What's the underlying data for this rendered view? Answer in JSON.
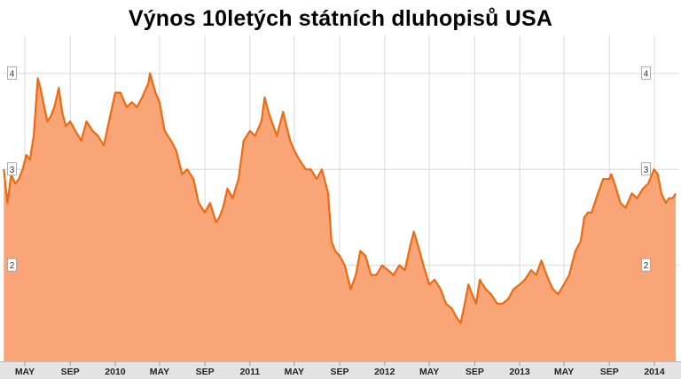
{
  "colors": {
    "line": "#ee6a10",
    "area": "#f9a577",
    "grid": "#d9d9d9",
    "axis_band": "#e3e3e3",
    "label_box_border": "#999999"
  },
  "chart_data": {
    "type": "area",
    "title": "Výnos 10letých státních dluhopisů USA",
    "xlabel": "",
    "ylabel": "",
    "ylim": [
      1.0,
      4.35
    ],
    "yticks": [
      2,
      3,
      4
    ],
    "grid": true,
    "x_ticks": [
      {
        "label": "MAY",
        "date": "2009-05"
      },
      {
        "label": "SEP",
        "date": "2009-09"
      },
      {
        "label": "2010",
        "date": "2010-01"
      },
      {
        "label": "MAY",
        "date": "2010-05"
      },
      {
        "label": "SEP",
        "date": "2010-09"
      },
      {
        "label": "2011",
        "date": "2011-01"
      },
      {
        "label": "MAY",
        "date": "2011-05"
      },
      {
        "label": "SEP",
        "date": "2011-09"
      },
      {
        "label": "2012",
        "date": "2012-01"
      },
      {
        "label": "MAY",
        "date": "2012-05"
      },
      {
        "label": "SEP",
        "date": "2012-09"
      },
      {
        "label": "2013",
        "date": "2013-01"
      },
      {
        "label": "MAY",
        "date": "2013-05"
      },
      {
        "label": "SEP",
        "date": "2013-09"
      },
      {
        "label": "2014",
        "date": "2014-01"
      }
    ],
    "series": [
      {
        "x": [
          "2009-03-05",
          "2009-03-15",
          "2009-03-25",
          "2009-04-05",
          "2009-04-15",
          "2009-04-25",
          "2009-05-05",
          "2009-05-15",
          "2009-05-25",
          "2009-06-05",
          "2009-06-12",
          "2009-06-20",
          "2009-07-01",
          "2009-07-10",
          "2009-07-20",
          "2009-08-01",
          "2009-08-10",
          "2009-08-20",
          "2009-09-01",
          "2009-09-15",
          "2009-10-01",
          "2009-10-15",
          "2009-11-01",
          "2009-11-15",
          "2009-12-01",
          "2009-12-15",
          "2010-01-01",
          "2010-01-15",
          "2010-02-01",
          "2010-02-15",
          "2010-03-01",
          "2010-03-15",
          "2010-04-01",
          "2010-04-05",
          "2010-04-20",
          "2010-05-01",
          "2010-05-15",
          "2010-06-01",
          "2010-06-15",
          "2010-07-01",
          "2010-07-15",
          "2010-08-01",
          "2010-08-15",
          "2010-09-01",
          "2010-09-15",
          "2010-10-01",
          "2010-10-10",
          "2010-10-20",
          "2010-11-01",
          "2010-11-15",
          "2010-12-01",
          "2010-12-15",
          "2011-01-01",
          "2011-01-15",
          "2011-02-01",
          "2011-02-10",
          "2011-02-20",
          "2011-03-01",
          "2011-03-15",
          "2011-04-01",
          "2011-04-10",
          "2011-04-20",
          "2011-05-01",
          "2011-05-15",
          "2011-06-01",
          "2011-06-15",
          "2011-07-01",
          "2011-07-15",
          "2011-07-25",
          "2011-08-01",
          "2011-08-10",
          "2011-08-20",
          "2011-09-01",
          "2011-09-15",
          "2011-10-01",
          "2011-10-15",
          "2011-10-27",
          "2011-11-10",
          "2011-11-25",
          "2011-12-10",
          "2011-12-25",
          "2012-01-10",
          "2012-01-25",
          "2012-02-10",
          "2012-02-25",
          "2012-03-10",
          "2012-03-20",
          "2012-04-01",
          "2012-04-15",
          "2012-05-01",
          "2012-05-15",
          "2012-06-01",
          "2012-06-15",
          "2012-07-01",
          "2012-07-15",
          "2012-07-25",
          "2012-08-05",
          "2012-08-15",
          "2012-08-25",
          "2012-09-05",
          "2012-09-15",
          "2012-10-01",
          "2012-10-15",
          "2012-11-01",
          "2012-11-15",
          "2012-12-01",
          "2012-12-15",
          "2013-01-01",
          "2013-01-15",
          "2013-02-01",
          "2013-02-15",
          "2013-03-01",
          "2013-03-10",
          "2013-03-20",
          "2013-04-01",
          "2013-04-15",
          "2013-05-01",
          "2013-05-15",
          "2013-06-01",
          "2013-06-15",
          "2013-06-25",
          "2013-07-05",
          "2013-07-15",
          "2013-08-01",
          "2013-08-15",
          "2013-09-01",
          "2013-09-06",
          "2013-09-15",
          "2013-10-01",
          "2013-10-15",
          "2013-11-01",
          "2013-11-15",
          "2013-12-01",
          "2013-12-15",
          "2013-12-31",
          "2014-01-10",
          "2014-01-20",
          "2014-02-01",
          "2014-02-10",
          "2014-02-20",
          "2014-02-28"
        ],
        "values": [
          3.0,
          2.65,
          2.95,
          2.85,
          2.9,
          3.0,
          3.15,
          3.1,
          3.35,
          3.95,
          3.85,
          3.7,
          3.5,
          3.55,
          3.65,
          3.85,
          3.6,
          3.45,
          3.5,
          3.4,
          3.3,
          3.5,
          3.4,
          3.35,
          3.25,
          3.5,
          3.8,
          3.8,
          3.65,
          3.7,
          3.65,
          3.75,
          3.9,
          4.0,
          3.8,
          3.7,
          3.4,
          3.3,
          3.2,
          2.95,
          3.0,
          2.9,
          2.65,
          2.55,
          2.65,
          2.45,
          2.5,
          2.6,
          2.8,
          2.7,
          2.9,
          3.3,
          3.4,
          3.35,
          3.5,
          3.75,
          3.6,
          3.5,
          3.35,
          3.6,
          3.45,
          3.3,
          3.2,
          3.1,
          3.0,
          3.0,
          2.9,
          3.0,
          2.85,
          2.75,
          2.25,
          2.15,
          2.1,
          2.0,
          1.75,
          1.9,
          2.15,
          2.1,
          1.9,
          1.9,
          2.0,
          1.95,
          1.9,
          2.0,
          1.95,
          2.2,
          2.35,
          2.2,
          2.0,
          1.8,
          1.85,
          1.75,
          1.6,
          1.55,
          1.45,
          1.4,
          1.6,
          1.8,
          1.7,
          1.6,
          1.85,
          1.75,
          1.7,
          1.6,
          1.6,
          1.65,
          1.75,
          1.8,
          1.85,
          1.95,
          1.9,
          2.05,
          1.95,
          1.85,
          1.75,
          1.7,
          1.8,
          1.9,
          2.15,
          2.25,
          2.5,
          2.55,
          2.55,
          2.75,
          2.9,
          2.9,
          2.95,
          2.85,
          2.65,
          2.6,
          2.75,
          2.7,
          2.8,
          2.85,
          3.0,
          2.95,
          2.75,
          2.65,
          2.7,
          2.7,
          2.75
        ]
      }
    ]
  }
}
